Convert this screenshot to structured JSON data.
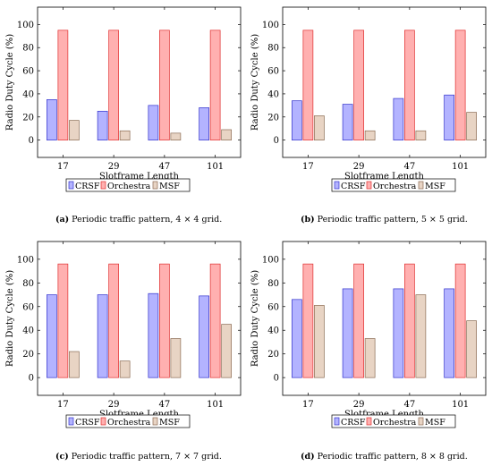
{
  "chart_data": [
    {
      "type": "bar",
      "categories": [
        "17",
        "29",
        "47",
        "101"
      ],
      "xlabel": "Slotframe Length",
      "ylabel": "Radio Duty Cycle (%)",
      "ylim": [
        -15,
        115
      ],
      "yticks": [
        0,
        20,
        40,
        60,
        80,
        100
      ],
      "series": [
        {
          "name": "CRSF",
          "values": [
            35,
            25,
            30,
            28
          ]
        },
        {
          "name": "Orchestra",
          "values": [
            95,
            95,
            95,
            95
          ]
        },
        {
          "name": "MSF",
          "values": [
            17,
            8,
            6,
            9
          ]
        }
      ],
      "legend_position": "bottom",
      "caption": {
        "label": "(a)",
        "text": " Periodic traffic pattern, 4 × 4 grid."
      }
    },
    {
      "type": "bar",
      "categories": [
        "17",
        "29",
        "47",
        "101"
      ],
      "xlabel": "Slotframe Length",
      "ylabel": "Radio Duty Cycle (%)",
      "ylim": [
        -15,
        115
      ],
      "yticks": [
        0,
        20,
        40,
        60,
        80,
        100
      ],
      "series": [
        {
          "name": "CRSF",
          "values": [
            34,
            31,
            36,
            39
          ]
        },
        {
          "name": "Orchestra",
          "values": [
            95,
            95,
            95,
            95
          ]
        },
        {
          "name": "MSF",
          "values": [
            21,
            8,
            8,
            24
          ]
        }
      ],
      "legend_position": "bottom",
      "caption": {
        "label": "(b)",
        "text": " Periodic traffic pattern, 5 × 5 grid."
      }
    },
    {
      "type": "bar",
      "categories": [
        "17",
        "29",
        "47",
        "101"
      ],
      "xlabel": "Slotframe Length",
      "ylabel": "Radio Duty Cycle (%)",
      "ylim": [
        -15,
        115
      ],
      "yticks": [
        0,
        20,
        40,
        60,
        80,
        100
      ],
      "series": [
        {
          "name": "CRSF",
          "values": [
            70,
            70,
            71,
            69
          ]
        },
        {
          "name": "Orchestra",
          "values": [
            96,
            96,
            96,
            96
          ]
        },
        {
          "name": "MSF",
          "values": [
            22,
            14,
            33,
            45
          ]
        }
      ],
      "legend_position": "bottom",
      "caption": {
        "label": "(c)",
        "text": " Periodic traffic pattern, 7 × 7 grid."
      }
    },
    {
      "type": "bar",
      "categories": [
        "17",
        "29",
        "47",
        "101"
      ],
      "xlabel": "Slotframe Length",
      "ylabel": "Radio Duty Cycle (%)",
      "ylim": [
        -15,
        115
      ],
      "yticks": [
        0,
        20,
        40,
        60,
        80,
        100
      ],
      "series": [
        {
          "name": "CRSF",
          "values": [
            66,
            75,
            75,
            75
          ]
        },
        {
          "name": "Orchestra",
          "values": [
            96,
            96,
            96,
            96
          ]
        },
        {
          "name": "MSF",
          "values": [
            61,
            33,
            70,
            48
          ]
        }
      ],
      "legend_position": "bottom",
      "caption": {
        "label": "(d)",
        "text": " Periodic traffic pattern, 8 × 8 grid."
      }
    }
  ],
  "colors": {
    "CRSF": {
      "fill": "#b3b3ff",
      "stroke": "#3333cc"
    },
    "Orchestra": {
      "fill": "#ffb0b0",
      "stroke": "#e03030"
    },
    "MSF": {
      "fill": "#e8d4c4",
      "stroke": "#8a6a52"
    }
  }
}
